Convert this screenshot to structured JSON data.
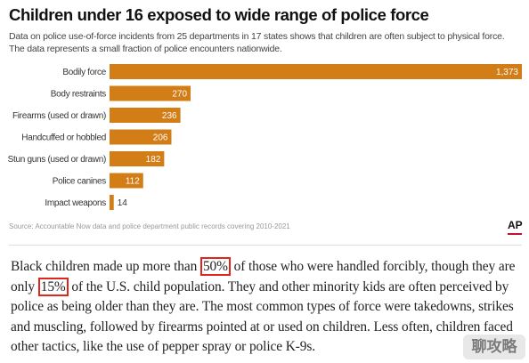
{
  "chart_data": {
    "type": "bar",
    "orientation": "horizontal",
    "title": "Children under 16 exposed to wide range of police force",
    "subtitle": "Data on police use-of-force incidents from 25 departments in 17 states shows that children are often subject to physical force. The data represents a small fraction of police encounters nationwide.",
    "categories": [
      "Bodily force",
      "Body restraints",
      "Firearms (used or drawn)",
      "Handcuffed or hobbled",
      "Stun guns (used or drawn)",
      "Police canines",
      "Impact weapons"
    ],
    "values": [
      1373,
      270,
      236,
      206,
      182,
      112,
      14
    ],
    "data_labels": [
      "1,373",
      "270",
      "236",
      "206",
      "182",
      "112",
      "14"
    ],
    "xlim": [
      0,
      1373
    ],
    "grid": false,
    "legend": "none",
    "bar_color": "#d27d16",
    "source": "Source: Accountable Now data and police department public records covering 2010-2021",
    "publisher": "AP"
  },
  "article": {
    "p1_a": "Black children made up more than ",
    "p1_hl1": "50%",
    "p1_b": " of those who were handled forcibly, though they are only ",
    "p1_hl2": "15%",
    "p1_c": " of the U.S. child population. They and other minority kids are often perceived by police as being older than they are. The most common types of force were takedowns, strikes and muscling, followed by firearms pointed at or used on children. Less often, children faced other tactics, like the use of pepper spray or police K-9s."
  },
  "watermark": "聊攻略"
}
